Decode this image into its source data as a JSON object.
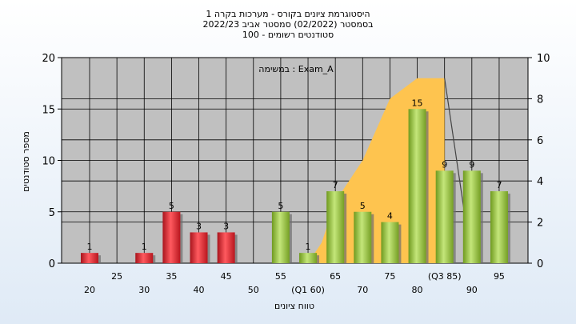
{
  "chart_data": {
    "type": "bar",
    "title": [
      "היסטוגרמת ציונים בקורס - מערכות בקרה 1",
      "בסמסטר  (02/2022)  סמסטר אביב 2022/23",
      "סטודנטים רשומים - 100"
    ],
    "annotation": "במשימה : Exam_A",
    "xlabel": "טווח ציונים",
    "ylabel": "מספר סטודנטים",
    "ylim": [
      0,
      20
    ],
    "y2lim": [
      0,
      10
    ],
    "yticks": [
      0,
      5,
      10,
      15,
      20
    ],
    "y2ticks": [
      0,
      2,
      4,
      6,
      8,
      10
    ],
    "grid": true,
    "x_ticks_upper": [
      "25",
      "35",
      "45",
      "55",
      "65",
      "75",
      "(Q3 85)",
      "95"
    ],
    "x_ticks_lower": [
      "20",
      "30",
      "40",
      "50",
      "(Q1 60)",
      "70",
      "80",
      "90"
    ],
    "bars": [
      {
        "x": 20,
        "value": 1,
        "label": "1",
        "color": "red"
      },
      {
        "x": 25,
        "value": 0,
        "label": "",
        "color": "red"
      },
      {
        "x": 30,
        "value": 1,
        "label": "1",
        "color": "red"
      },
      {
        "x": 35,
        "value": 5,
        "label": "5",
        "color": "red"
      },
      {
        "x": 40,
        "value": 3,
        "label": "3",
        "color": "red"
      },
      {
        "x": 45,
        "value": 3,
        "label": "3",
        "color": "red"
      },
      {
        "x": 50,
        "value": 0,
        "label": "",
        "color": "green"
      },
      {
        "x": 55,
        "value": 5,
        "label": "5",
        "color": "green"
      },
      {
        "x": 60,
        "value": 1,
        "label": "1",
        "color": "green"
      },
      {
        "x": 65,
        "value": 7,
        "label": "7",
        "color": "green"
      },
      {
        "x": 70,
        "value": 5,
        "label": "5",
        "color": "green"
      },
      {
        "x": 75,
        "value": 4,
        "label": "4",
        "color": "green"
      },
      {
        "x": 80,
        "value": 15,
        "label": "15",
        "color": "green"
      },
      {
        "x": 85,
        "value": 9,
        "label": "9",
        "color": "green"
      },
      {
        "x": 90,
        "value": 9,
        "label": "9",
        "color": "green"
      },
      {
        "x": 95,
        "value": 7,
        "label": "7",
        "color": "green"
      }
    ],
    "quartile_area": {
      "y2_values": [
        {
          "x": 60,
          "y": 0
        },
        {
          "x": 62.5,
          "y": 1
        },
        {
          "x": 65,
          "y": 3
        },
        {
          "x": 67.5,
          "y": 4
        },
        {
          "x": 70,
          "y": 5
        },
        {
          "x": 75,
          "y": 8
        },
        {
          "x": 80,
          "y": 9
        },
        {
          "x": 85,
          "y": 9
        },
        {
          "x": 85,
          "y": 0
        }
      ],
      "trend_line": [
        {
          "x": 85,
          "y": 9
        },
        {
          "x": 90,
          "y": 0
        }
      ],
      "color": "#fec44f"
    },
    "colors": {
      "plot_bg": "#c0c0c0",
      "red_bar": "#e8323a",
      "green_bar": "#9bc83f",
      "area": "#fec44f"
    }
  }
}
